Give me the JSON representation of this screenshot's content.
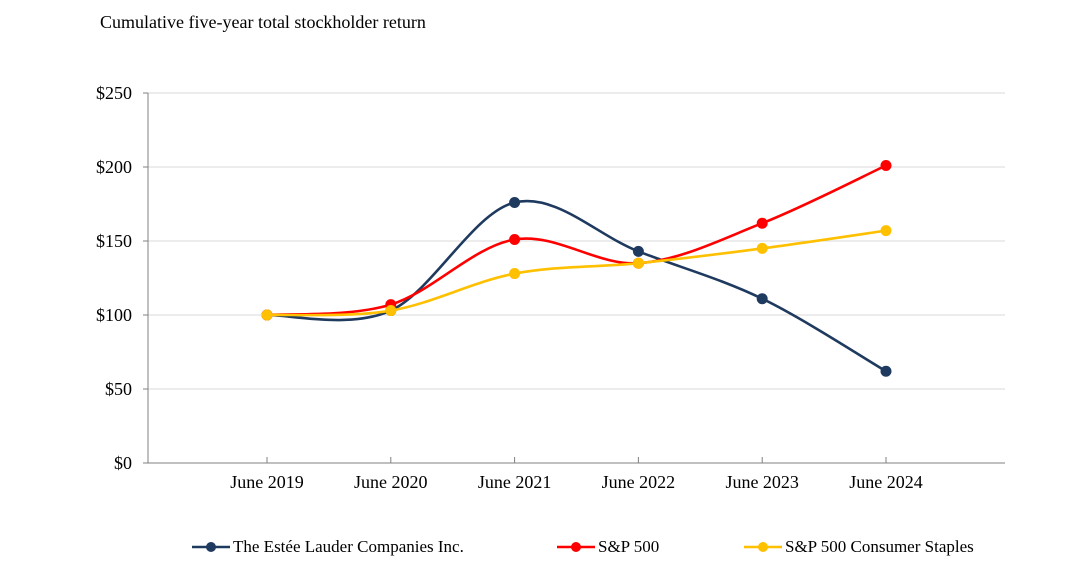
{
  "chart_data": {
    "type": "line",
    "title": "Cumulative five-year total stockholder return",
    "categories": [
      "June 2019",
      "June 2020",
      "June 2021",
      "June 2022",
      "June 2023",
      "June 2024"
    ],
    "series": [
      {
        "name": "The Estée Lauder Companies Inc.",
        "color": "#1F3A5F",
        "values": [
          100,
          103,
          176,
          143,
          111,
          62
        ]
      },
      {
        "name": "S&P 500",
        "color": "#FF0000",
        "values": [
          100,
          107,
          151,
          135,
          162,
          201
        ]
      },
      {
        "name": "S&P 500 Consumer Staples",
        "color": "#FFC000",
        "values": [
          100,
          103,
          128,
          135,
          145,
          157
        ]
      }
    ],
    "xlabel": "",
    "ylabel": "",
    "ylim": [
      0,
      250
    ],
    "ytick_step": 50,
    "ytick_labels": [
      "$0",
      "$50",
      "$100",
      "$150",
      "$200",
      "$250"
    ],
    "grid": true,
    "line_smoothing": true,
    "markers": true,
    "legend_position": "bottom",
    "colors": {
      "grid": "#D9D9D9",
      "axis": "#808080",
      "text": "#000000",
      "background": "#FFFFFF"
    }
  }
}
